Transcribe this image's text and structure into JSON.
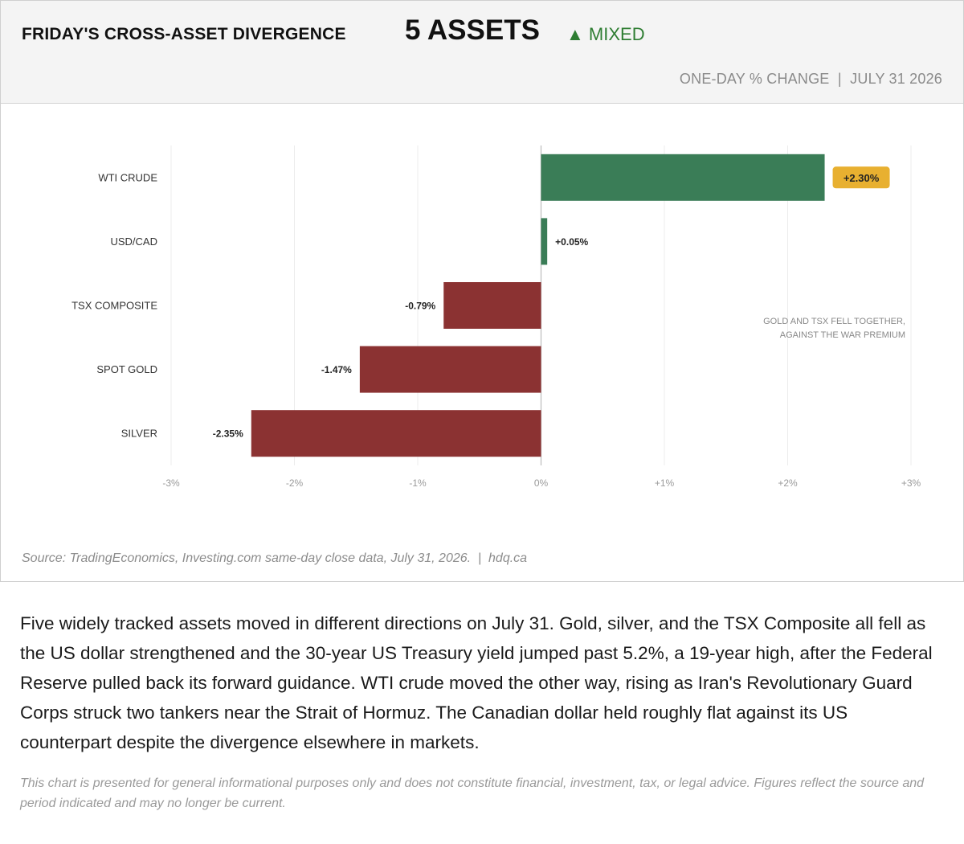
{
  "header": {
    "title": "FRIDAY'S CROSS-ASSET DIVERGENCE",
    "count_label": "5 ASSETS",
    "status_arrow": "▲",
    "status_label": "MIXED",
    "subtitle": "ONE-DAY % CHANGE  |  JULY 31 2026"
  },
  "colors": {
    "positive": "#3a7d57",
    "negative": "#8b3232",
    "highlight": "#e8b030",
    "status": "#2e7d32"
  },
  "chart_data": {
    "type": "bar",
    "orientation": "horizontal",
    "categories": [
      "WTI CRUDE",
      "USD/CAD",
      "TSX COMPOSITE",
      "SPOT GOLD",
      "SILVER"
    ],
    "values": [
      2.3,
      0.05,
      -0.79,
      -1.47,
      -2.35
    ],
    "value_labels": [
      "+2.30%",
      "+0.05%",
      "-0.79%",
      "-1.47%",
      "-2.35%"
    ],
    "highlighted_index": 0,
    "xlim": [
      -3,
      3
    ],
    "ticks": [
      -3,
      -2,
      -1,
      0,
      1,
      2,
      3
    ],
    "tick_labels": [
      "-3%",
      "-2%",
      "-1%",
      "0%",
      "+1%",
      "+2%",
      "+3%"
    ],
    "grid": true,
    "annotation": [
      "GOLD AND TSX FELL TOGETHER,",
      "AGAINST THE WAR PREMIUM"
    ]
  },
  "source": "Source: TradingEconomics, Investing.com same-day close data, July 31, 2026.  |  hdq.ca",
  "body_text": "Five widely tracked assets moved in different directions on July 31. Gold, silver, and the TSX Composite all fell as the US dollar strengthened and the 30-year US Treasury yield jumped past 5.2%, a 19-year high, after the Federal Reserve pulled back its forward guidance. WTI crude moved the other way, rising as Iran's Revolutionary Guard Corps struck two tankers near the Strait of Hormuz. The Canadian dollar held roughly flat against its US counterpart despite the divergence elsewhere in markets.",
  "disclaimer": "This chart is presented for general informational purposes only and does not constitute financial, investment, tax, or legal advice. Figures reflect the source and period indicated and may no longer be current."
}
